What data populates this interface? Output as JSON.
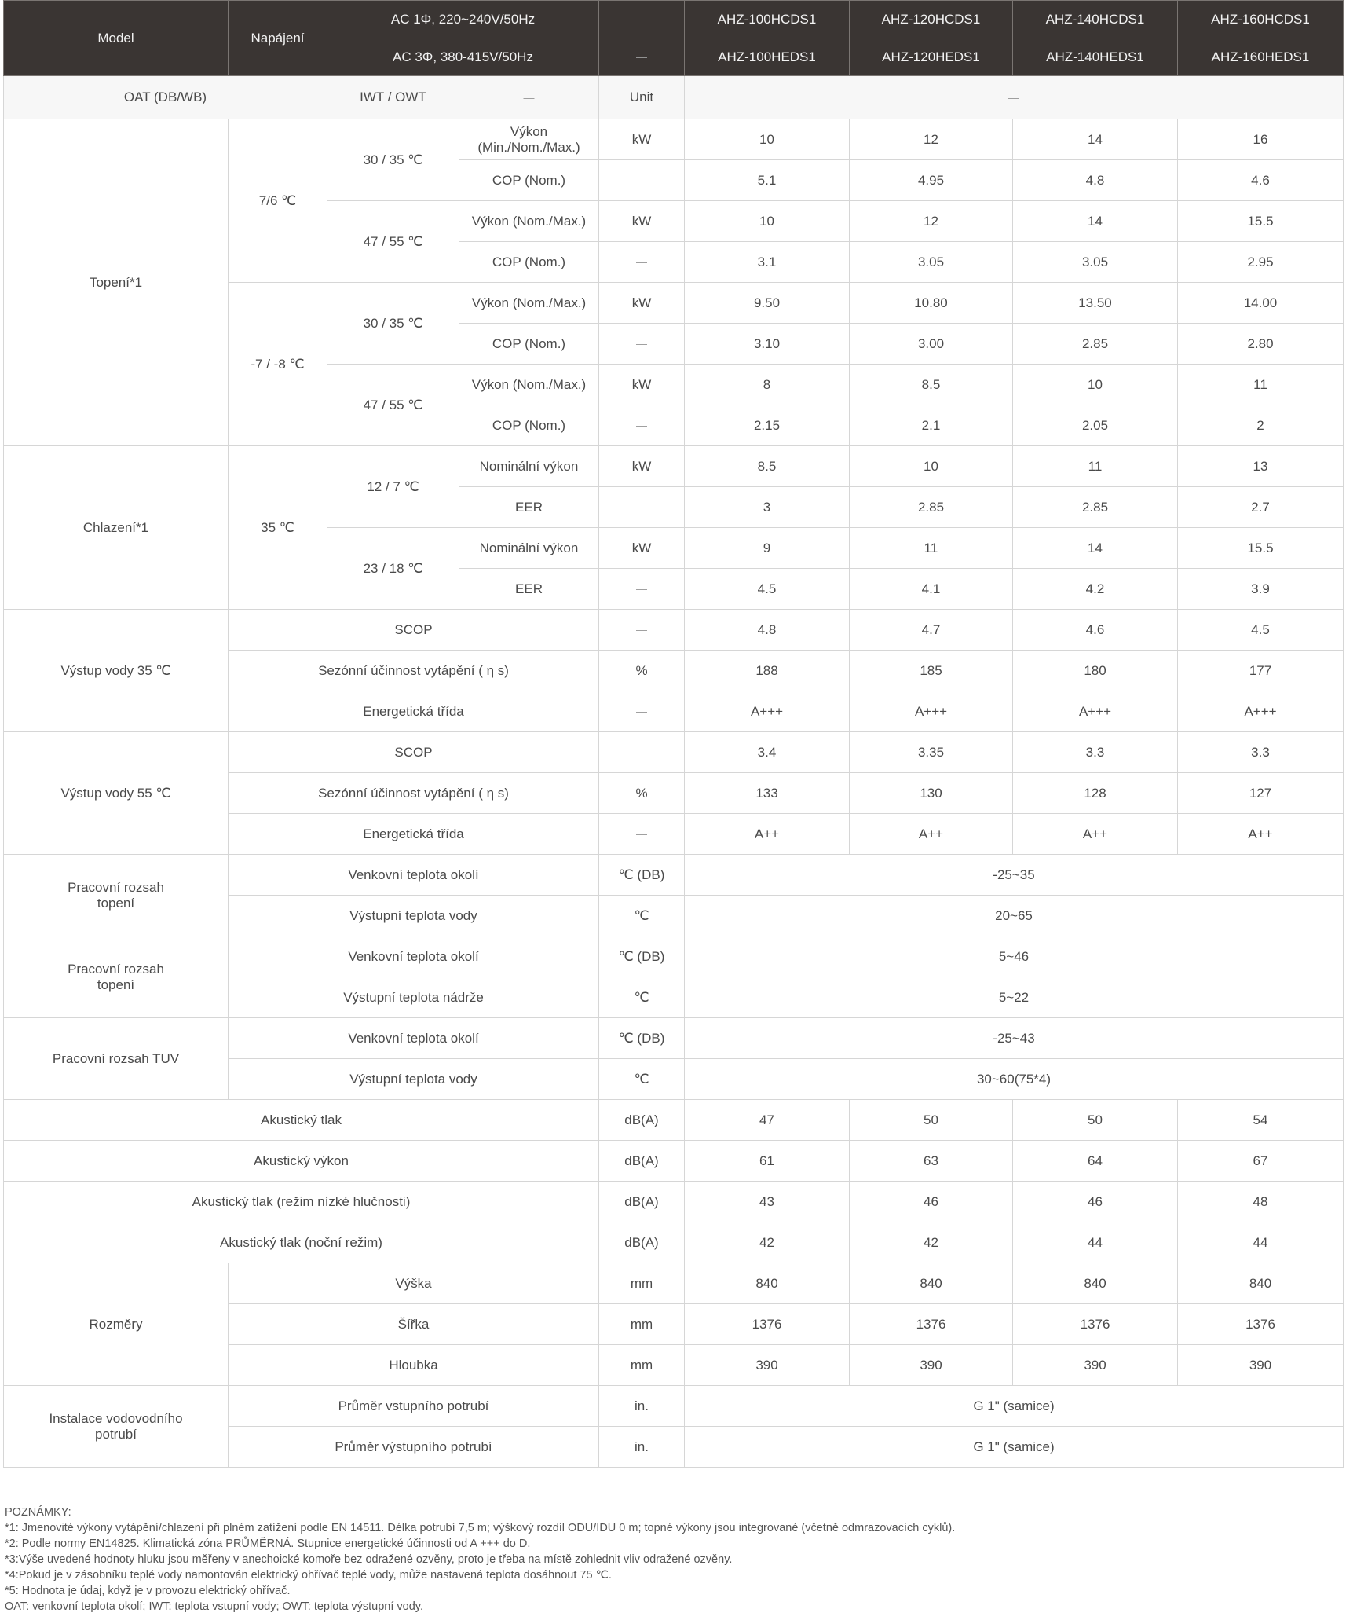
{
  "header": {
    "model": "Model",
    "power": "Napájení",
    "ac1": "AC 1Φ, 220~240V/50Hz",
    "ac3": "AC 3Φ, 380-415V/50Hz",
    "dash": "—",
    "models_1ph": [
      "AHZ-100HCDS1",
      "AHZ-120HCDS1",
      "AHZ-140HCDS1",
      "AHZ-160HCDS1"
    ],
    "models_3ph": [
      "AHZ-100HEDS1",
      "AHZ-120HEDS1",
      "AHZ-140HEDS1",
      "AHZ-160HEDS1"
    ]
  },
  "conditions": {
    "oat": "OAT (DB/WB)",
    "iwt_owt": "IWT / OWT",
    "dash": "—",
    "unit": "Unit",
    "values": "—"
  },
  "heating": {
    "label": "Topení*1",
    "groups": [
      {
        "oat": "7/6 ℃",
        "subs": [
          {
            "iwt": "30 / 35 ℃",
            "rows": [
              {
                "p": "Výkon (Min./Nom./Max.)",
                "u": "kW",
                "v": [
                  "10",
                  "12",
                  "14",
                  "16"
                ]
              },
              {
                "p": "COP (Nom.)",
                "u": "—",
                "v": [
                  "5.1",
                  "4.95",
                  "4.8",
                  "4.6"
                ]
              }
            ]
          },
          {
            "iwt": "47 / 55 ℃",
            "rows": [
              {
                "p": "Výkon (Nom./Max.)",
                "u": "kW",
                "v": [
                  "10",
                  "12",
                  "14",
                  "15.5"
                ]
              },
              {
                "p": "COP (Nom.)",
                "u": "—",
                "v": [
                  "3.1",
                  "3.05",
                  "3.05",
                  "2.95"
                ]
              }
            ]
          }
        ]
      },
      {
        "oat": "-7 / -8 ℃",
        "subs": [
          {
            "iwt": "30 / 35 ℃",
            "rows": [
              {
                "p": "Výkon (Nom./Max.)",
                "u": "kW",
                "v": [
                  "9.50",
                  "10.80",
                  "13.50",
                  "14.00"
                ]
              },
              {
                "p": "COP (Nom.)",
                "u": "—",
                "v": [
                  "3.10",
                  "3.00",
                  "2.85",
                  "2.80"
                ]
              }
            ]
          },
          {
            "iwt": "47 / 55 ℃",
            "rows": [
              {
                "p": "Výkon (Nom./Max.)",
                "u": "kW",
                "v": [
                  "8",
                  "8.5",
                  "10",
                  "11"
                ]
              },
              {
                "p": "COP (Nom.)",
                "u": "—",
                "v": [
                  "2.15",
                  "2.1",
                  "2.05",
                  "2"
                ]
              }
            ]
          }
        ]
      }
    ]
  },
  "cooling": {
    "label": "Chlazení*1",
    "oat": "35 ℃",
    "subs": [
      {
        "iwt": "12 / 7 ℃",
        "rows": [
          {
            "p": "Nominální výkon",
            "u": "kW",
            "v": [
              "8.5",
              "10",
              "11",
              "13"
            ]
          },
          {
            "p": "EER",
            "u": "—",
            "v": [
              "3",
              "2.85",
              "2.85",
              "2.7"
            ]
          }
        ]
      },
      {
        "iwt": "23 / 18 ℃",
        "rows": [
          {
            "p": "Nominální výkon",
            "u": "kW",
            "v": [
              "9",
              "11",
              "14",
              "15.5"
            ]
          },
          {
            "p": "EER",
            "u": "—",
            "v": [
              "4.5",
              "4.1",
              "4.2",
              "3.9"
            ]
          }
        ]
      }
    ]
  },
  "water35": {
    "label": "Výstup vody 35 ℃",
    "rows": [
      {
        "p": "SCOP",
        "u": "—",
        "v": [
          "4.8",
          "4.7",
          "4.6",
          "4.5"
        ]
      },
      {
        "p": "Sezónní účinnost vytápění ( η s)",
        "u": "%",
        "v": [
          "188",
          "185",
          "180",
          "177"
        ]
      },
      {
        "p": "Energetická třída",
        "u": "—",
        "v": [
          "A+++",
          "A+++",
          "A+++",
          "A+++"
        ]
      }
    ]
  },
  "water55": {
    "label": "Výstup vody 55 ℃",
    "rows": [
      {
        "p": "SCOP",
        "u": "—",
        "v": [
          "3.4",
          "3.35",
          "3.3",
          "3.3"
        ]
      },
      {
        "p": "Sezónní účinnost vytápění ( η s)",
        "u": "%",
        "v": [
          "133",
          "130",
          "128",
          "127"
        ]
      },
      {
        "p": "Energetická třída",
        "u": "—",
        "v": [
          "A++",
          "A++",
          "A++",
          "A++"
        ]
      }
    ]
  },
  "ranges": [
    {
      "label": "Pracovní rozsah topení",
      "rows": [
        {
          "p": "Venkovní teplota okolí",
          "u": "℃ (DB)",
          "v": "-25~35"
        },
        {
          "p": "Výstupní teplota vody",
          "u": "℃",
          "v": "20~65"
        }
      ]
    },
    {
      "label": "Pracovní rozsah topení",
      "rows": [
        {
          "p": "Venkovní teplota okolí",
          "u": "℃ (DB)",
          "v": "5~46"
        },
        {
          "p": "Výstupní teplota nádrže",
          "u": "℃",
          "v": "5~22"
        }
      ]
    },
    {
      "label": "Pracovní rozsah TUV",
      "rows": [
        {
          "p": "Venkovní teplota okolí",
          "u": "℃ (DB)",
          "v": "-25~43"
        },
        {
          "p": "Výstupní teplota vody",
          "u": "℃",
          "v": "30~60(75*4)"
        }
      ]
    }
  ],
  "acoustic": [
    {
      "p": "Akustický tlak",
      "u": "dB(A)",
      "v": [
        "47",
        "50",
        "50",
        "54"
      ]
    },
    {
      "p": "Akustický výkon",
      "u": "dB(A)",
      "v": [
        "61",
        "63",
        "64",
        "67"
      ]
    },
    {
      "p": "Akustický tlak (režim nízké hlučnosti)",
      "u": "dB(A)",
      "v": [
        "43",
        "46",
        "46",
        "48"
      ]
    },
    {
      "p": "Akustický tlak (noční režim)",
      "u": "dB(A)",
      "v": [
        "42",
        "42",
        "44",
        "44"
      ]
    }
  ],
  "dimensions": {
    "label": "Rozměry",
    "rows": [
      {
        "p": "Výška",
        "u": "mm",
        "v": [
          "840",
          "840",
          "840",
          "840"
        ]
      },
      {
        "p": "Šířka",
        "u": "mm",
        "v": [
          "1376",
          "1376",
          "1376",
          "1376"
        ]
      },
      {
        "p": "Hloubka",
        "u": "mm",
        "v": [
          "390",
          "390",
          "390",
          "390"
        ]
      }
    ]
  },
  "piping": {
    "label": "Instalace vodovodního potrubí",
    "rows": [
      {
        "p": "Průměr vstupního potrubí",
        "u": "in.",
        "v": "G 1\" (samice)"
      },
      {
        "p": "Průměr výstupního potrubí",
        "u": "in.",
        "v": "G 1\" (samice)"
      }
    ]
  },
  "notes": [
    "POZNÁMKY:",
    "*1: Jmenovité výkony vytápění/chlazení při plném zatížení podle EN 14511. Délka potrubí 7,5 m; výškový rozdíl ODU/IDU 0 m; topné výkony jsou integrované (včetně odmrazovacích cyklů).",
    "*2: Podle normy EN14825. Klimatická zóna PRŮMĚRNÁ. Stupnice energetické účinnosti od A +++ do D.",
    "*3:Výše uvedené hodnoty hluku jsou měřeny v anechoické komoře bez odražené ozvěny, proto je třeba na místě zohlednit vliv odražené ozvěny.",
    "*4:Pokud je v zásobníku teplé vody namontován elektrický ohřívač teplé vody, může nastavená teplota dosáhnout 75 ℃.",
    "*5: Hodnota je údaj, když je v provozu elektrický ohřívač.",
    "OAT: venkovní teplota okolí; IWT: teplota vstupní vody; OWT: teplota výstupní vody."
  ]
}
